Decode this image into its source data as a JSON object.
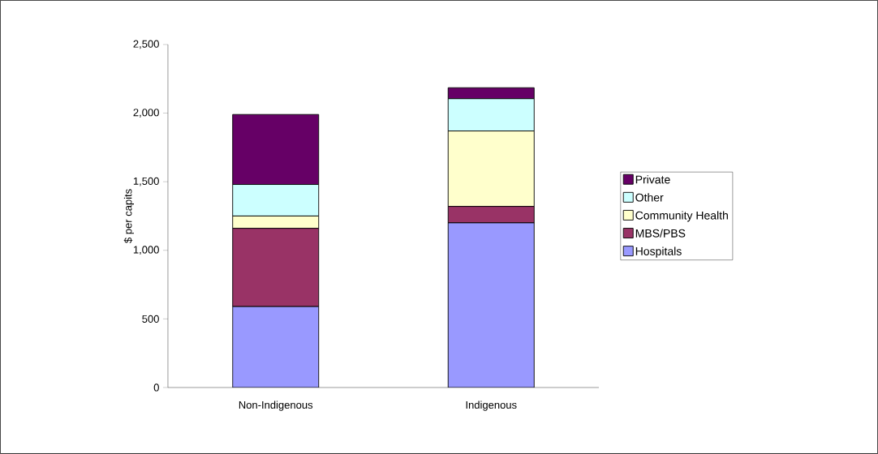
{
  "chart_data": {
    "type": "bar",
    "stacked": true,
    "ylabel": "$ per capits",
    "categories": [
      "Non-Indigenous",
      "Indigenous"
    ],
    "series": [
      {
        "name": "Hospitals",
        "color": "#9999ff",
        "values": [
          590,
          1200
        ]
      },
      {
        "name": "MBS/PBS",
        "color": "#993366",
        "values": [
          570,
          120
        ]
      },
      {
        "name": "Community Health",
        "color": "#ffffcc",
        "values": [
          90,
          550
        ]
      },
      {
        "name": "Other",
        "color": "#ccffff",
        "values": [
          230,
          235
        ]
      },
      {
        "name": "Private",
        "color": "#660066",
        "values": [
          510,
          80
        ]
      }
    ],
    "ylim": [
      0,
      2500
    ],
    "yticks": [
      {
        "value": 0,
        "label": "0"
      },
      {
        "value": 500,
        "label": "500"
      },
      {
        "value": 1000,
        "label": "1,000"
      },
      {
        "value": 1500,
        "label": "1,500"
      },
      {
        "value": 2000,
        "label": "2,000"
      },
      {
        "value": 2500,
        "label": "2,500"
      }
    ],
    "grid": false,
    "legend": "right"
  }
}
